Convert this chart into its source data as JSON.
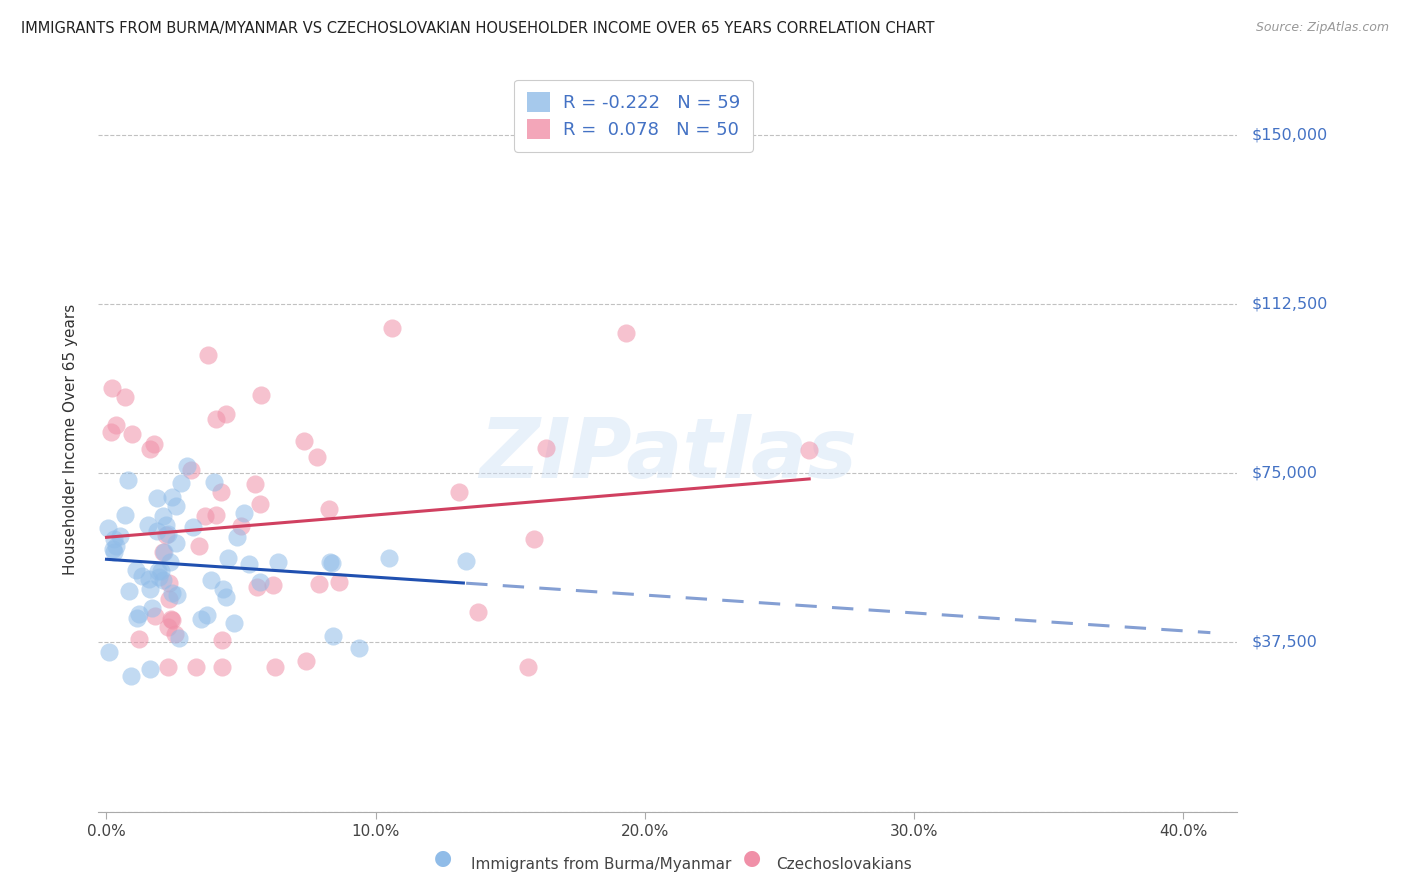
{
  "title": "IMMIGRANTS FROM BURMA/MYANMAR VS CZECHOSLOVAKIAN HOUSEHOLDER INCOME OVER 65 YEARS CORRELATION CHART",
  "source": "Source: ZipAtlas.com",
  "ylabel": "Householder Income Over 65 years",
  "yticks": [
    0,
    37500,
    75000,
    112500,
    150000
  ],
  "ytick_labels": [
    "",
    "$37,500",
    "$75,000",
    "$112,500",
    "$150,000"
  ],
  "ylim": [
    0,
    165000
  ],
  "xlim": [
    -0.3,
    42.0
  ],
  "xtick_labels": [
    "0.0%",
    "10.0%",
    "20.0%",
    "30.0%",
    "40.0%"
  ],
  "xtick_vals": [
    0,
    10,
    20,
    30,
    40
  ],
  "legend_line1": "R = -0.222   N = 59",
  "legend_line2": "R =  0.078   N = 50",
  "blue_color": "#90bce8",
  "pink_color": "#f090a8",
  "blue_line_color": "#2050b0",
  "pink_line_color": "#d04060",
  "watermark_text": "ZIPatlas",
  "background_color": "#ffffff",
  "grid_color": "#bbbbbb",
  "ytick_color": "#4472c4",
  "title_fontsize": 10.5,
  "axis_label_fontsize": 11,
  "tick_fontsize": 11,
  "legend_fontsize": 13
}
